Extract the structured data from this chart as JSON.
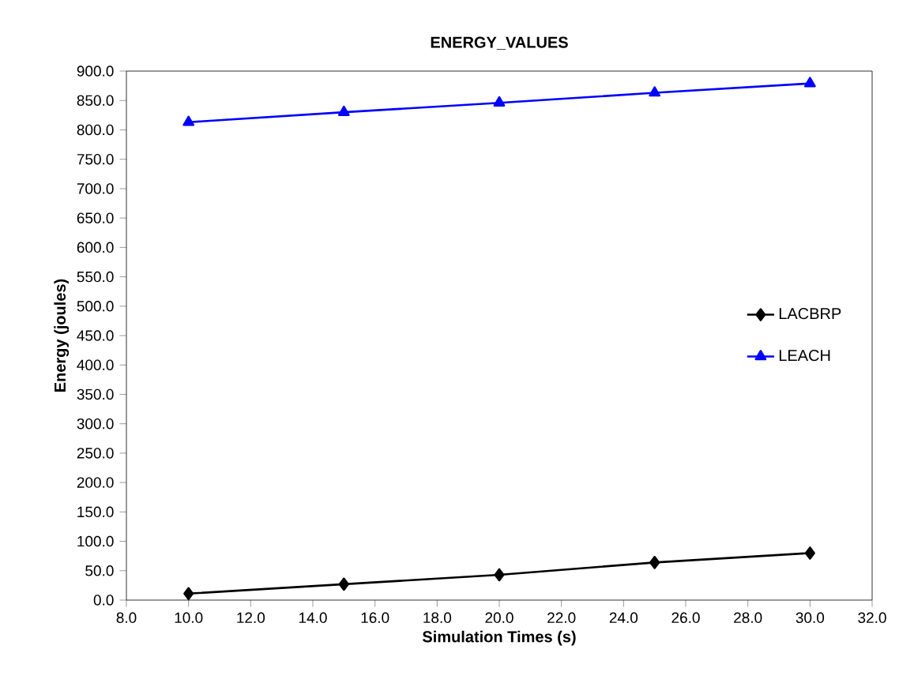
{
  "chart_data": {
    "type": "line",
    "title": "ENERGY_VALUES",
    "xlabel": "Simulation Times (s)",
    "ylabel": "Energy (joules)",
    "x": [
      10,
      15,
      20,
      25,
      30
    ],
    "series": [
      {
        "name": "LACBRP",
        "color": "#000000",
        "marker": "diamond",
        "values": [
          11,
          27,
          43,
          64,
          80
        ]
      },
      {
        "name": "LEACH",
        "color": "#0000ff",
        "marker": "triangle",
        "values": [
          813,
          830,
          846,
          863,
          879
        ]
      }
    ],
    "xlim": [
      8,
      32
    ],
    "xticks": [
      {
        "value": 8,
        "label": "8.0"
      },
      {
        "value": 10,
        "label": "10.0"
      },
      {
        "value": 12,
        "label": "12.0"
      },
      {
        "value": 14,
        "label": "14.0"
      },
      {
        "value": 16,
        "label": "16.0"
      },
      {
        "value": 18,
        "label": "18.0"
      },
      {
        "value": 20,
        "label": "20.0"
      },
      {
        "value": 22,
        "label": "22.0"
      },
      {
        "value": 24,
        "label": "24.0"
      },
      {
        "value": 26,
        "label": "26.0"
      },
      {
        "value": 28,
        "label": "28.0"
      },
      {
        "value": 30,
        "label": "30.0"
      },
      {
        "value": 32,
        "label": "32.0"
      }
    ],
    "ylim": [
      0,
      900
    ],
    "yticks": [
      {
        "value": 0,
        "label": "0.0"
      },
      {
        "value": 50,
        "label": "50.0"
      },
      {
        "value": 100,
        "label": "100.0"
      },
      {
        "value": 150,
        "label": "150.0"
      },
      {
        "value": 200,
        "label": "200.0"
      },
      {
        "value": 250,
        "label": "250.0"
      },
      {
        "value": 300,
        "label": "300.0"
      },
      {
        "value": 350,
        "label": "350.0"
      },
      {
        "value": 400,
        "label": "400.0"
      },
      {
        "value": 450,
        "label": "450.0"
      },
      {
        "value": 500,
        "label": "500.0"
      },
      {
        "value": 550,
        "label": "550.0"
      },
      {
        "value": 600,
        "label": "600.0"
      },
      {
        "value": 650,
        "label": "650.0"
      },
      {
        "value": 700,
        "label": "700.0"
      },
      {
        "value": 750,
        "label": "750.0"
      },
      {
        "value": 800,
        "label": "800.0"
      },
      {
        "value": 850,
        "label": "850.0"
      },
      {
        "value": 900,
        "label": "900.0"
      }
    ],
    "grid": false,
    "legend": "right",
    "line_style": "solid"
  }
}
